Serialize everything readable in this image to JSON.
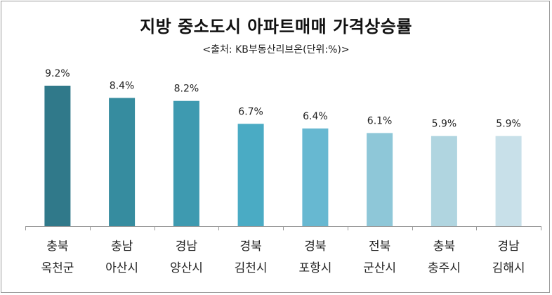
{
  "chart_data": {
    "type": "bar",
    "title": "지방 중소도시 아파트매매 가격상승률",
    "subtitle": "<출처: KB부동산리브온(단위:%)>",
    "xlabel": "",
    "ylabel": "",
    "categories": [
      [
        "충북",
        "옥천군"
      ],
      [
        "충남",
        "아산시"
      ],
      [
        "경남",
        "양산시"
      ],
      [
        "경북",
        "김천시"
      ],
      [
        "경북",
        "포항시"
      ],
      [
        "전북",
        "군산시"
      ],
      [
        "충북",
        "충주시"
      ],
      [
        "경남",
        "김해시"
      ]
    ],
    "values": [
      9.2,
      8.4,
      8.2,
      6.7,
      6.4,
      6.1,
      5.9,
      5.9
    ],
    "data_labels": [
      "9.2%",
      "8.4%",
      "8.2%",
      "6.7%",
      "6.4%",
      "6.1%",
      "5.9%",
      "5.9%"
    ],
    "colors": [
      "#30798a",
      "#368c9f",
      "#3e9ab0",
      "#4aabc4",
      "#67b8d1",
      "#8ec7d8",
      "#b0d5e0",
      "#c8e0e9"
    ],
    "ylim": [
      0,
      12
    ],
    "grid": false,
    "legend": "none"
  }
}
